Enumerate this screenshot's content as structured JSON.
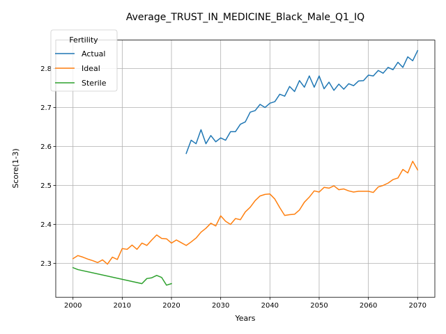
{
  "chart_data": {
    "type": "line",
    "title": "Average_TRUST_IN_MEDICINE_Black_Male_Q1_IQ",
    "xlabel": "Years",
    "ylabel": "Score(1-3)",
    "xlim": [
      1996.5,
      2073.5
    ],
    "ylim": [
      2.213,
      2.873
    ],
    "xticks": [
      2000,
      2010,
      2020,
      2030,
      2040,
      2050,
      2060,
      2070
    ],
    "yticks": [
      2.3,
      2.4,
      2.5,
      2.6,
      2.7,
      2.8
    ],
    "grid": true,
    "legend": {
      "title": "Fertility",
      "placement": "upper-left"
    },
    "series": [
      {
        "name": "Actual",
        "color": "#1f77b4",
        "x": [
          2023,
          2024,
          2025,
          2026,
          2027,
          2028,
          2029,
          2030,
          2031,
          2032,
          2033,
          2034,
          2035,
          2036,
          2037,
          2038,
          2039,
          2040,
          2041,
          2042,
          2043,
          2044,
          2045,
          2046,
          2047,
          2048,
          2049,
          2050,
          2051,
          2052,
          2053,
          2054,
          2055,
          2056,
          2057,
          2058,
          2059,
          2060,
          2061,
          2062,
          2063,
          2064,
          2065,
          2066,
          2067,
          2068,
          2069,
          2070
        ],
        "y": [
          2.582,
          2.616,
          2.607,
          2.643,
          2.607,
          2.628,
          2.612,
          2.622,
          2.616,
          2.638,
          2.638,
          2.657,
          2.663,
          2.688,
          2.692,
          2.708,
          2.7,
          2.711,
          2.715,
          2.734,
          2.729,
          2.754,
          2.741,
          2.769,
          2.752,
          2.781,
          2.752,
          2.781,
          2.748,
          2.765,
          2.744,
          2.76,
          2.747,
          2.761,
          2.756,
          2.768,
          2.769,
          2.783,
          2.781,
          2.795,
          2.788,
          2.803,
          2.797,
          2.816,
          2.803,
          2.83,
          2.82,
          2.846
        ]
      },
      {
        "name": "Ideal",
        "color": "#ff7f0e",
        "x": [
          2000,
          2001,
          2002,
          2003,
          2004,
          2005,
          2006,
          2007,
          2008,
          2009,
          2010,
          2011,
          2012,
          2013,
          2014,
          2015,
          2016,
          2017,
          2018,
          2019,
          2020,
          2021,
          2022,
          2023,
          2024,
          2025,
          2026,
          2027,
          2028,
          2029,
          2030,
          2031,
          2032,
          2033,
          2034,
          2035,
          2036,
          2037,
          2038,
          2039,
          2040,
          2041,
          2042,
          2043,
          2044,
          2045,
          2046,
          2047,
          2048,
          2049,
          2050,
          2051,
          2052,
          2053,
          2054,
          2055,
          2056,
          2057,
          2058,
          2059,
          2060,
          2061,
          2062,
          2063,
          2064,
          2065,
          2066,
          2067,
          2068,
          2069,
          2070
        ],
        "y": [
          2.312,
          2.32,
          2.316,
          2.311,
          2.307,
          2.302,
          2.309,
          2.298,
          2.316,
          2.31,
          2.338,
          2.336,
          2.347,
          2.336,
          2.352,
          2.346,
          2.36,
          2.373,
          2.364,
          2.363,
          2.352,
          2.36,
          2.353,
          2.346,
          2.355,
          2.365,
          2.38,
          2.39,
          2.403,
          2.396,
          2.422,
          2.408,
          2.4,
          2.415,
          2.412,
          2.432,
          2.444,
          2.461,
          2.473,
          2.477,
          2.478,
          2.465,
          2.443,
          2.423,
          2.425,
          2.426,
          2.437,
          2.457,
          2.47,
          2.486,
          2.483,
          2.495,
          2.493,
          2.499,
          2.489,
          2.491,
          2.486,
          2.483,
          2.485,
          2.485,
          2.485,
          2.482,
          2.496,
          2.5,
          2.506,
          2.515,
          2.519,
          2.541,
          2.532,
          2.562,
          2.54
        ]
      },
      {
        "name": "Sterile",
        "color": "#2ca02c",
        "x": [
          2000,
          2001,
          2014,
          2015,
          2016,
          2017,
          2018,
          2019,
          2020
        ],
        "y": [
          2.289,
          2.284,
          2.248,
          2.261,
          2.263,
          2.269,
          2.264,
          2.244,
          2.248
        ]
      }
    ]
  }
}
